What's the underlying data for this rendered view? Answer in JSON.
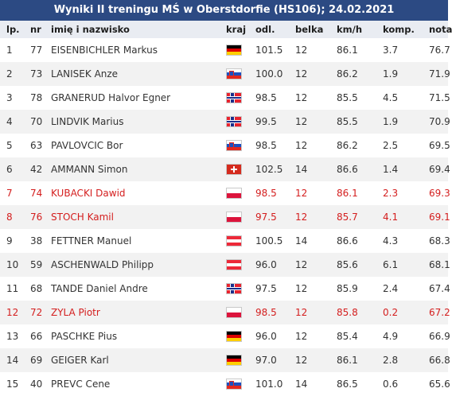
{
  "title": "Wyniki II treningu MŚ w Oberstdorfie (HS106); 24.02.2021",
  "headers": [
    "lp.",
    "nr",
    "imię i nazwisko",
    "kraj",
    "odl.",
    "belka",
    "km/h",
    "komp.",
    "nota"
  ],
  "rows": [
    {
      "lp": "1",
      "nr": "77",
      "name": "EISENBICHLER Markus",
      "country": "GER",
      "flag": "germany-flag-icon",
      "dist": "101.5",
      "gate": "12",
      "speed": "86.1",
      "comp": "3.7",
      "score": "76.7",
      "polish": false
    },
    {
      "lp": "2",
      "nr": "73",
      "name": "LANISEK Anze",
      "country": "SLO",
      "flag": "slovenia-flag-icon",
      "dist": "100.0",
      "gate": "12",
      "speed": "86.2",
      "comp": "1.9",
      "score": "71.9",
      "polish": false
    },
    {
      "lp": "3",
      "nr": "78",
      "name": "GRANERUD Halvor Egner",
      "country": "NOR",
      "flag": "norway-flag-icon",
      "dist": "98.5",
      "gate": "12",
      "speed": "85.5",
      "comp": "4.5",
      "score": "71.5",
      "polish": false
    },
    {
      "lp": "4",
      "nr": "70",
      "name": "LINDVIK Marius",
      "country": "NOR",
      "flag": "norway-flag-icon",
      "dist": "99.5",
      "gate": "12",
      "speed": "85.5",
      "comp": "1.9",
      "score": "70.9",
      "polish": false
    },
    {
      "lp": "5",
      "nr": "63",
      "name": "PAVLOVCIC Bor",
      "country": "SLO",
      "flag": "slovenia-flag-icon",
      "dist": "98.5",
      "gate": "12",
      "speed": "86.2",
      "comp": "2.5",
      "score": "69.5",
      "polish": false
    },
    {
      "lp": "6",
      "nr": "42",
      "name": "AMMANN Simon",
      "country": "SUI",
      "flag": "switzerland-flag-icon",
      "dist": "102.5",
      "gate": "14",
      "speed": "86.6",
      "comp": "1.4",
      "score": "69.4",
      "polish": false
    },
    {
      "lp": "7",
      "nr": "74",
      "name": "KUBACKI Dawid",
      "country": "POL",
      "flag": "poland-flag-icon",
      "dist": "98.5",
      "gate": "12",
      "speed": "86.1",
      "comp": "2.3",
      "score": "69.3",
      "polish": true
    },
    {
      "lp": "8",
      "nr": "76",
      "name": "STOCH Kamil",
      "country": "POL",
      "flag": "poland-flag-icon",
      "dist": "97.5",
      "gate": "12",
      "speed": "85.7",
      "comp": "4.1",
      "score": "69.1",
      "polish": true
    },
    {
      "lp": "9",
      "nr": "38",
      "name": "FETTNER Manuel",
      "country": "AUT",
      "flag": "austria-flag-icon",
      "dist": "100.5",
      "gate": "14",
      "speed": "86.6",
      "comp": "4.3",
      "score": "68.3",
      "polish": false
    },
    {
      "lp": "10",
      "nr": "59",
      "name": "ASCHENWALD Philipp",
      "country": "AUT",
      "flag": "austria-flag-icon",
      "dist": "96.0",
      "gate": "12",
      "speed": "85.6",
      "comp": "6.1",
      "score": "68.1",
      "polish": false
    },
    {
      "lp": "11",
      "nr": "68",
      "name": "TANDE Daniel Andre",
      "country": "NOR",
      "flag": "norway-flag-icon",
      "dist": "97.5",
      "gate": "12",
      "speed": "85.9",
      "comp": "2.4",
      "score": "67.4",
      "polish": false
    },
    {
      "lp": "12",
      "nr": "72",
      "name": "ZYLA Piotr",
      "country": "POL",
      "flag": "poland-flag-icon",
      "dist": "98.5",
      "gate": "12",
      "speed": "85.8",
      "comp": "0.2",
      "score": "67.2",
      "polish": true
    },
    {
      "lp": "13",
      "nr": "66",
      "name": "PASCHKE Pius",
      "country": "GER",
      "flag": "germany-flag-icon",
      "dist": "96.0",
      "gate": "12",
      "speed": "85.4",
      "comp": "4.9",
      "score": "66.9",
      "polish": false
    },
    {
      "lp": "14",
      "nr": "69",
      "name": "GEIGER Karl",
      "country": "GER",
      "flag": "germany-flag-icon",
      "dist": "97.0",
      "gate": "12",
      "speed": "86.1",
      "comp": "2.8",
      "score": "66.8",
      "polish": false
    },
    {
      "lp": "15",
      "nr": "40",
      "name": "PREVC Cene",
      "country": "SLO",
      "flag": "slovenia-flag-icon",
      "dist": "101.0",
      "gate": "14",
      "speed": "86.5",
      "comp": "0.6",
      "score": "65.6",
      "polish": false
    }
  ],
  "colors": {
    "title_bg": "#2c4a83",
    "header_bg": "#e9ecf2",
    "polish_text": "#d41e1e"
  }
}
